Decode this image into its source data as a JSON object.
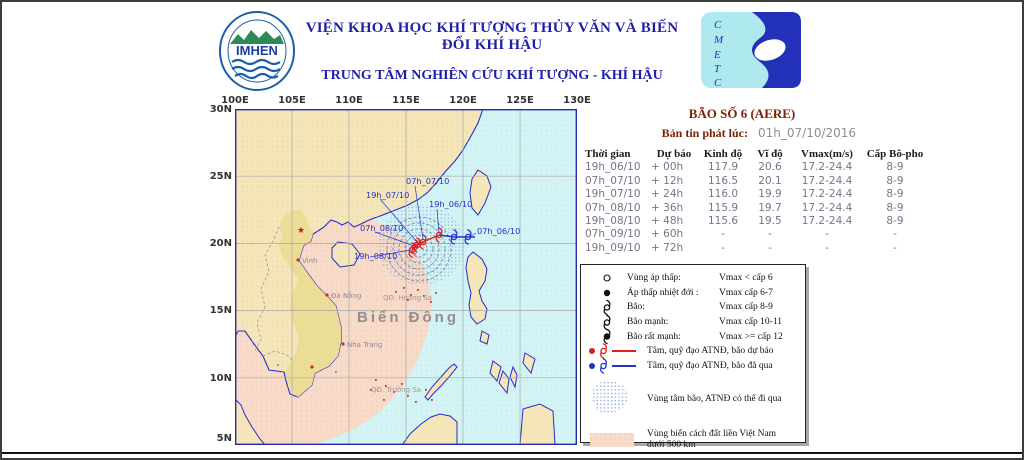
{
  "header": {
    "org_line1": "VIỆN KHOA HỌC KHÍ TƯỢNG THỦY VĂN VÀ BIẾN ĐỔI KHÍ HẬU",
    "org_line2": "TRUNG TÂM NGHIÊN CỨU KHÍ TƯỢNG - KHÍ HẬU",
    "logo_left_text": "IMHEN",
    "logo_right_letters": [
      "C",
      "M",
      "E",
      "T",
      "C"
    ]
  },
  "storm": {
    "title": "BÃO SỐ 6 (AERE)",
    "bulletin_label": "Bản tin phát lúc:",
    "bulletin_time": "01h_07/10/2016"
  },
  "forecast_table": {
    "headers": [
      "Thời gian",
      "Dự báo",
      "Kinh độ",
      "Vĩ độ",
      "Vmax(m/s)",
      "Cấp Bô-pho"
    ],
    "rows": [
      [
        "19h_06/10",
        "+ 00h",
        "117.9",
        "20.6",
        "17.2-24.4",
        "8-9"
      ],
      [
        "07h_07/10",
        "+ 12h",
        "116.5",
        "20.1",
        "17.2-24.4",
        "8-9"
      ],
      [
        "19h_07/10",
        "+ 24h",
        "116.0",
        "19.9",
        "17.2-24.4",
        "8-9"
      ],
      [
        "07h_08/10",
        "+ 36h",
        "115.9",
        "19.7",
        "17.2-24.4",
        "8-9"
      ],
      [
        "19h_08/10",
        "+ 48h",
        "115.6",
        "19.5",
        "17.2-24.4",
        "8-9"
      ],
      [
        "07h_09/10",
        "+ 60h",
        "-",
        "-",
        "-",
        "-"
      ],
      [
        "19h_09/10",
        "+ 72h",
        "-",
        "-",
        "-",
        "-"
      ]
    ]
  },
  "legend": {
    "items": [
      {
        "label": "Vùng áp thấp:",
        "value": "Vmax < cấp 6"
      },
      {
        "label": "Áp thấp nhiệt đới :",
        "value": "Vmax cấp 6-7"
      },
      {
        "label": "Bão:",
        "value": "Vmax cấp 8-9"
      },
      {
        "label": "Bão mạnh:",
        "value": "Vmax cấp 10-11"
      },
      {
        "label": "Bão rất mạnh:",
        "value": "Vmax >= cấp 12"
      },
      {
        "label": "Tâm, quỹ đạo ATNĐ, bão dự báo",
        "value": ""
      },
      {
        "label": "Tâm, quỹ đạo ATNĐ, bão đã qua",
        "value": ""
      },
      {
        "label": "Vùng tâm bão, ATNĐ có thể đi qua",
        "value": ""
      },
      {
        "label": "Vùng biển cách đất liền Việt Nam",
        "value": "dưới 500 km"
      }
    ]
  },
  "map": {
    "x_ticks": [
      "100E",
      "105E",
      "110E",
      "115E",
      "120E",
      "125E",
      "130E"
    ],
    "y_ticks": [
      "30N",
      "25N",
      "20N",
      "15N",
      "10N",
      "5N"
    ],
    "sea_label": "Biển  Đông",
    "island_labels": [
      "QĐ. Hoàng Sa",
      "QĐ. Trường Sa"
    ],
    "city_labels": [
      "Vinh",
      "Đà Nẵng",
      "Nha Trang"
    ],
    "track_labels": [
      "07h_06/10",
      "19h_06/10",
      "07h_07/10",
      "19h_07/10",
      "07h_08/10",
      "19h_08/10"
    ]
  },
  "colors": {
    "title_navy": "#1f1fa8",
    "storm_dark_red": "#7b2203",
    "table_row_gray": "#7b7288",
    "track_past_blue": "#2233cc",
    "track_forecast_red": "#e02020",
    "sea": "#d4f3f5",
    "land": "#f5e6ba",
    "coastal_zone_pink": "#f7dbc8"
  }
}
